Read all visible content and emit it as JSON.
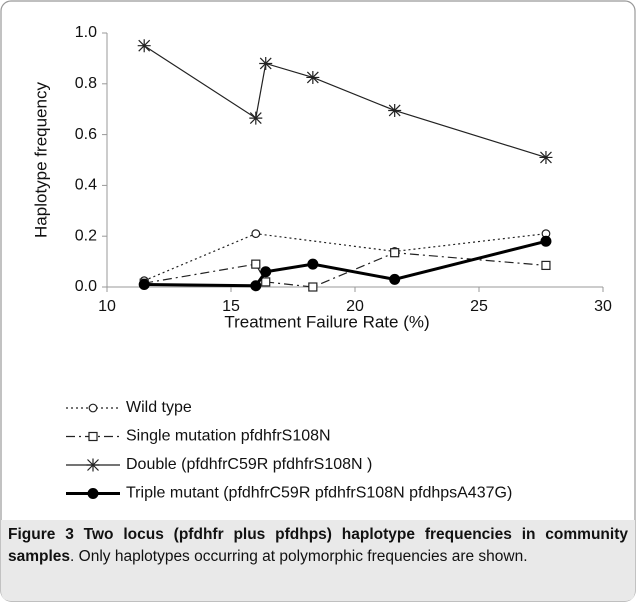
{
  "chart_data": {
    "type": "line",
    "xlabel": "Treatment Failure Rate (%)",
    "ylabel": "Haplotype frequency",
    "xlim": [
      10,
      30
    ],
    "xticks": [
      10,
      15,
      20,
      25,
      30
    ],
    "ylim": [
      0,
      1
    ],
    "yticks": [
      {
        "value": 0,
        "label": "0.0"
      },
      0.2,
      0.4,
      0.6,
      0.8,
      {
        "value": 1,
        "label": "1.0"
      }
    ],
    "grid": false,
    "series": [
      {
        "name": "Wild type",
        "color": "#222222",
        "dash": "dotted",
        "marker": "open-circle",
        "x": [
          11.5,
          16.0,
          21.6,
          27.7
        ],
        "values": [
          0.025,
          0.21,
          0.14,
          0.21
        ]
      },
      {
        "name": "Single mutation pfdhfrS108N",
        "color": "#222222",
        "dash": "dash-dot",
        "marker": "open-square",
        "x": [
          11.5,
          16.0,
          16.4,
          18.3,
          21.6,
          27.7
        ],
        "values": [
          0.015,
          0.09,
          0.02,
          0.0,
          0.135,
          0.085
        ]
      },
      {
        "name": "Double (pfdhfrC59R pfdhfrS108N )",
        "color": "#222222",
        "dash": "solid",
        "marker": "star",
        "x": [
          11.5,
          16.0,
          16.4,
          18.3,
          21.6,
          27.7
        ],
        "values": [
          0.95,
          0.665,
          0.88,
          0.825,
          0.695,
          0.51
        ]
      },
      {
        "name": "Triple mutant (pfdhfrC59R pfdhfrS108N pfdhpsA437G)",
        "color": "#000000",
        "dash": "thick",
        "marker": "filled-circle",
        "x": [
          11.5,
          16.0,
          16.4,
          18.3,
          21.6,
          27.7
        ],
        "values": [
          0.01,
          0.005,
          0.06,
          0.09,
          0.03,
          0.18
        ]
      }
    ]
  },
  "caption": {
    "label": "Figure 3",
    "title": "Two locus (pfdhfr plus pfdhps) haplotype frequencies in community samples",
    "text": ". Only haplotypes occurring at polymorphic frequencies are shown."
  }
}
